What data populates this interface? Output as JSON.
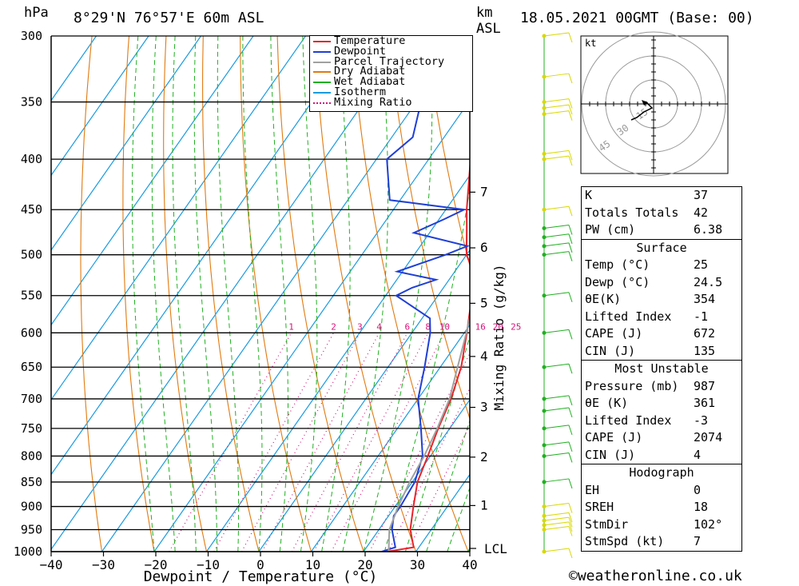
{
  "header": {
    "p_unit": "hPa",
    "location": "8°29'N 76°57'E 60m ASL",
    "km_label_1": "km",
    "km_label_2": "ASL",
    "datetime": "18.05.2021 00GMT (Base: 00)"
  },
  "axis": {
    "xlabel": "Dewpoint / Temperature (°C)",
    "mixing_label": "Mixing Ratio (g/kg)",
    "lcl_label": "LCL",
    "x_ticks": [
      "−40",
      "−30",
      "−20",
      "−10",
      "0",
      "10",
      "20",
      "30",
      "40"
    ],
    "p_ticks": [
      "300",
      "350",
      "400",
      "450",
      "500",
      "550",
      "600",
      "650",
      "700",
      "750",
      "800",
      "850",
      "900",
      "950",
      "1000"
    ],
    "km_ticks": [
      "7",
      "6",
      "5",
      "4",
      "3",
      "2",
      "1"
    ],
    "mixing_ticks": [
      "1",
      "2",
      "3",
      "4",
      "6",
      "8",
      "10",
      "16",
      "20",
      "25"
    ]
  },
  "legend": [
    {
      "label": "Temperature",
      "color": "#e8232a"
    },
    {
      "label": "Dewpoint",
      "color": "#1f3fd6"
    },
    {
      "label": "Parcel Trajectory",
      "color": "#a0a0a0"
    },
    {
      "label": "Dry Adiabat",
      "color": "#e07a10"
    },
    {
      "label": "Wet Adiabat",
      "color": "#20b020"
    },
    {
      "label": "Isotherm",
      "color": "#1a9be0"
    },
    {
      "label": "Mixing Ratio",
      "color": "#d4147a",
      "dotted": true
    }
  ],
  "chart_data": {
    "type": "line",
    "title": "8°29'N 76°57'E 60m ASL",
    "xlabel": "Dewpoint / Temperature (°C)",
    "ylabel": "hPa",
    "x_range": [
      -40,
      40
    ],
    "p_range": [
      1000,
      300
    ],
    "series": [
      {
        "name": "Temperature",
        "points": [
          [
            1000,
            24.5
          ],
          [
            990,
            29
          ],
          [
            950,
            26
          ],
          [
            900,
            23.5
          ],
          [
            850,
            21
          ],
          [
            800,
            19.5
          ],
          [
            750,
            17.8
          ],
          [
            700,
            16.3
          ],
          [
            650,
            14
          ],
          [
            600,
            10.5
          ],
          [
            550,
            6.5
          ],
          [
            520,
            3.5
          ],
          [
            500,
            0
          ],
          [
            470,
            -3.5
          ],
          [
            450,
            -6
          ],
          [
            400,
            -12
          ],
          [
            370,
            -15
          ],
          [
            360,
            -16.8
          ]
        ]
      },
      {
        "name": "Dewpoint",
        "points": [
          [
            1000,
            23.5
          ],
          [
            990,
            25.5
          ],
          [
            950,
            22.5
          ],
          [
            920,
            21
          ],
          [
            900,
            21
          ],
          [
            850,
            20.5
          ],
          [
            800,
            18.5
          ],
          [
            750,
            14.5
          ],
          [
            700,
            10
          ],
          [
            650,
            7
          ],
          [
            600,
            3.5
          ],
          [
            580,
            1.5
          ],
          [
            550,
            -8
          ],
          [
            540,
            -6
          ],
          [
            530,
            -2.5
          ],
          [
            520,
            -11
          ],
          [
            500,
            -4
          ],
          [
            490,
            -1
          ],
          [
            475,
            -13
          ],
          [
            460,
            -9
          ],
          [
            450,
            -6.5
          ],
          [
            440,
            -22
          ],
          [
            400,
            -28
          ],
          [
            380,
            -26
          ],
          [
            300,
            -35
          ]
        ]
      },
      {
        "name": "Parcel Trajectory",
        "points": [
          [
            1000,
            24.8
          ],
          [
            950,
            22
          ],
          [
            900,
            20.6
          ],
          [
            850,
            19.5
          ],
          [
            800,
            18.8
          ],
          [
            750,
            17.6
          ],
          [
            700,
            16
          ],
          [
            650,
            13.3
          ],
          [
            600,
            10.4
          ],
          [
            550,
            7
          ],
          [
            500,
            3
          ],
          [
            450,
            -2.5
          ],
          [
            400,
            -8.5
          ],
          [
            360,
            -13.5
          ]
        ]
      }
    ]
  },
  "hodograph": {
    "unit_label": "kt",
    "ring_labels": [
      "45",
      "30",
      "15"
    ]
  },
  "stats": {
    "summary": [
      {
        "label": "K",
        "value": "37"
      },
      {
        "label": "Totals Totals",
        "value": "42"
      },
      {
        "label": "PW (cm)",
        "value": "6.38"
      }
    ],
    "surface": {
      "title": "Surface",
      "rows": [
        {
          "label": "Temp (°C)",
          "value": "25"
        },
        {
          "label": "Dewp (°C)",
          "value": "24.5"
        },
        {
          "label": "θE(K)",
          "value": "354"
        },
        {
          "label": "Lifted Index",
          "value": "-1"
        },
        {
          "label": "CAPE (J)",
          "value": "672"
        },
        {
          "label": "CIN (J)",
          "value": "135"
        }
      ]
    },
    "most_unstable": {
      "title": "Most Unstable",
      "rows": [
        {
          "label": "Pressure (mb)",
          "value": "987"
        },
        {
          "label": "θE (K)",
          "value": "361"
        },
        {
          "label": "Lifted Index",
          "value": "-3"
        },
        {
          "label": "CAPE (J)",
          "value": "2074"
        },
        {
          "label": "CIN (J)",
          "value": "4"
        }
      ]
    },
    "hodograph": {
      "title": "Hodograph",
      "rows": [
        {
          "label": "EH",
          "value": "0"
        },
        {
          "label": "SREH",
          "value": "18"
        },
        {
          "label": "StmDir",
          "value": "102°"
        },
        {
          "label": "StmSpd (kt)",
          "value": "7"
        }
      ]
    }
  },
  "footer": "©weatheronline.co.uk"
}
